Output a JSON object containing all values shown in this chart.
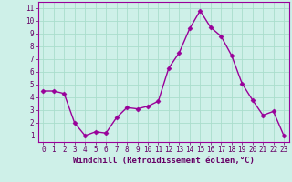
{
  "x": [
    0,
    1,
    2,
    3,
    4,
    5,
    6,
    7,
    8,
    9,
    10,
    11,
    12,
    13,
    14,
    15,
    16,
    17,
    18,
    19,
    20,
    21,
    22,
    23
  ],
  "y": [
    4.5,
    4.5,
    4.3,
    2.0,
    1.0,
    1.3,
    1.2,
    2.4,
    3.2,
    3.1,
    3.3,
    3.7,
    6.3,
    7.5,
    9.4,
    10.8,
    9.5,
    8.8,
    7.3,
    5.1,
    3.8,
    2.6,
    2.9,
    1.0
  ],
  "line_color": "#990099",
  "marker": "D",
  "marker_size": 2.5,
  "line_width": 1.0,
  "bg_color": "#cef0e8",
  "grid_color": "#aaddcc",
  "xlabel": "Windchill (Refroidissement éolien,°C)",
  "xlim": [
    -0.5,
    23.5
  ],
  "ylim": [
    0.5,
    11.5
  ],
  "yticks": [
    1,
    2,
    3,
    4,
    5,
    6,
    7,
    8,
    9,
    10,
    11
  ],
  "xticks": [
    0,
    1,
    2,
    3,
    4,
    5,
    6,
    7,
    8,
    9,
    10,
    11,
    12,
    13,
    14,
    15,
    16,
    17,
    18,
    19,
    20,
    21,
    22,
    23
  ],
  "axis_label_color": "#660066",
  "tick_label_color": "#660066",
  "tick_label_fontsize": 5.5,
  "xlabel_fontsize": 6.5
}
